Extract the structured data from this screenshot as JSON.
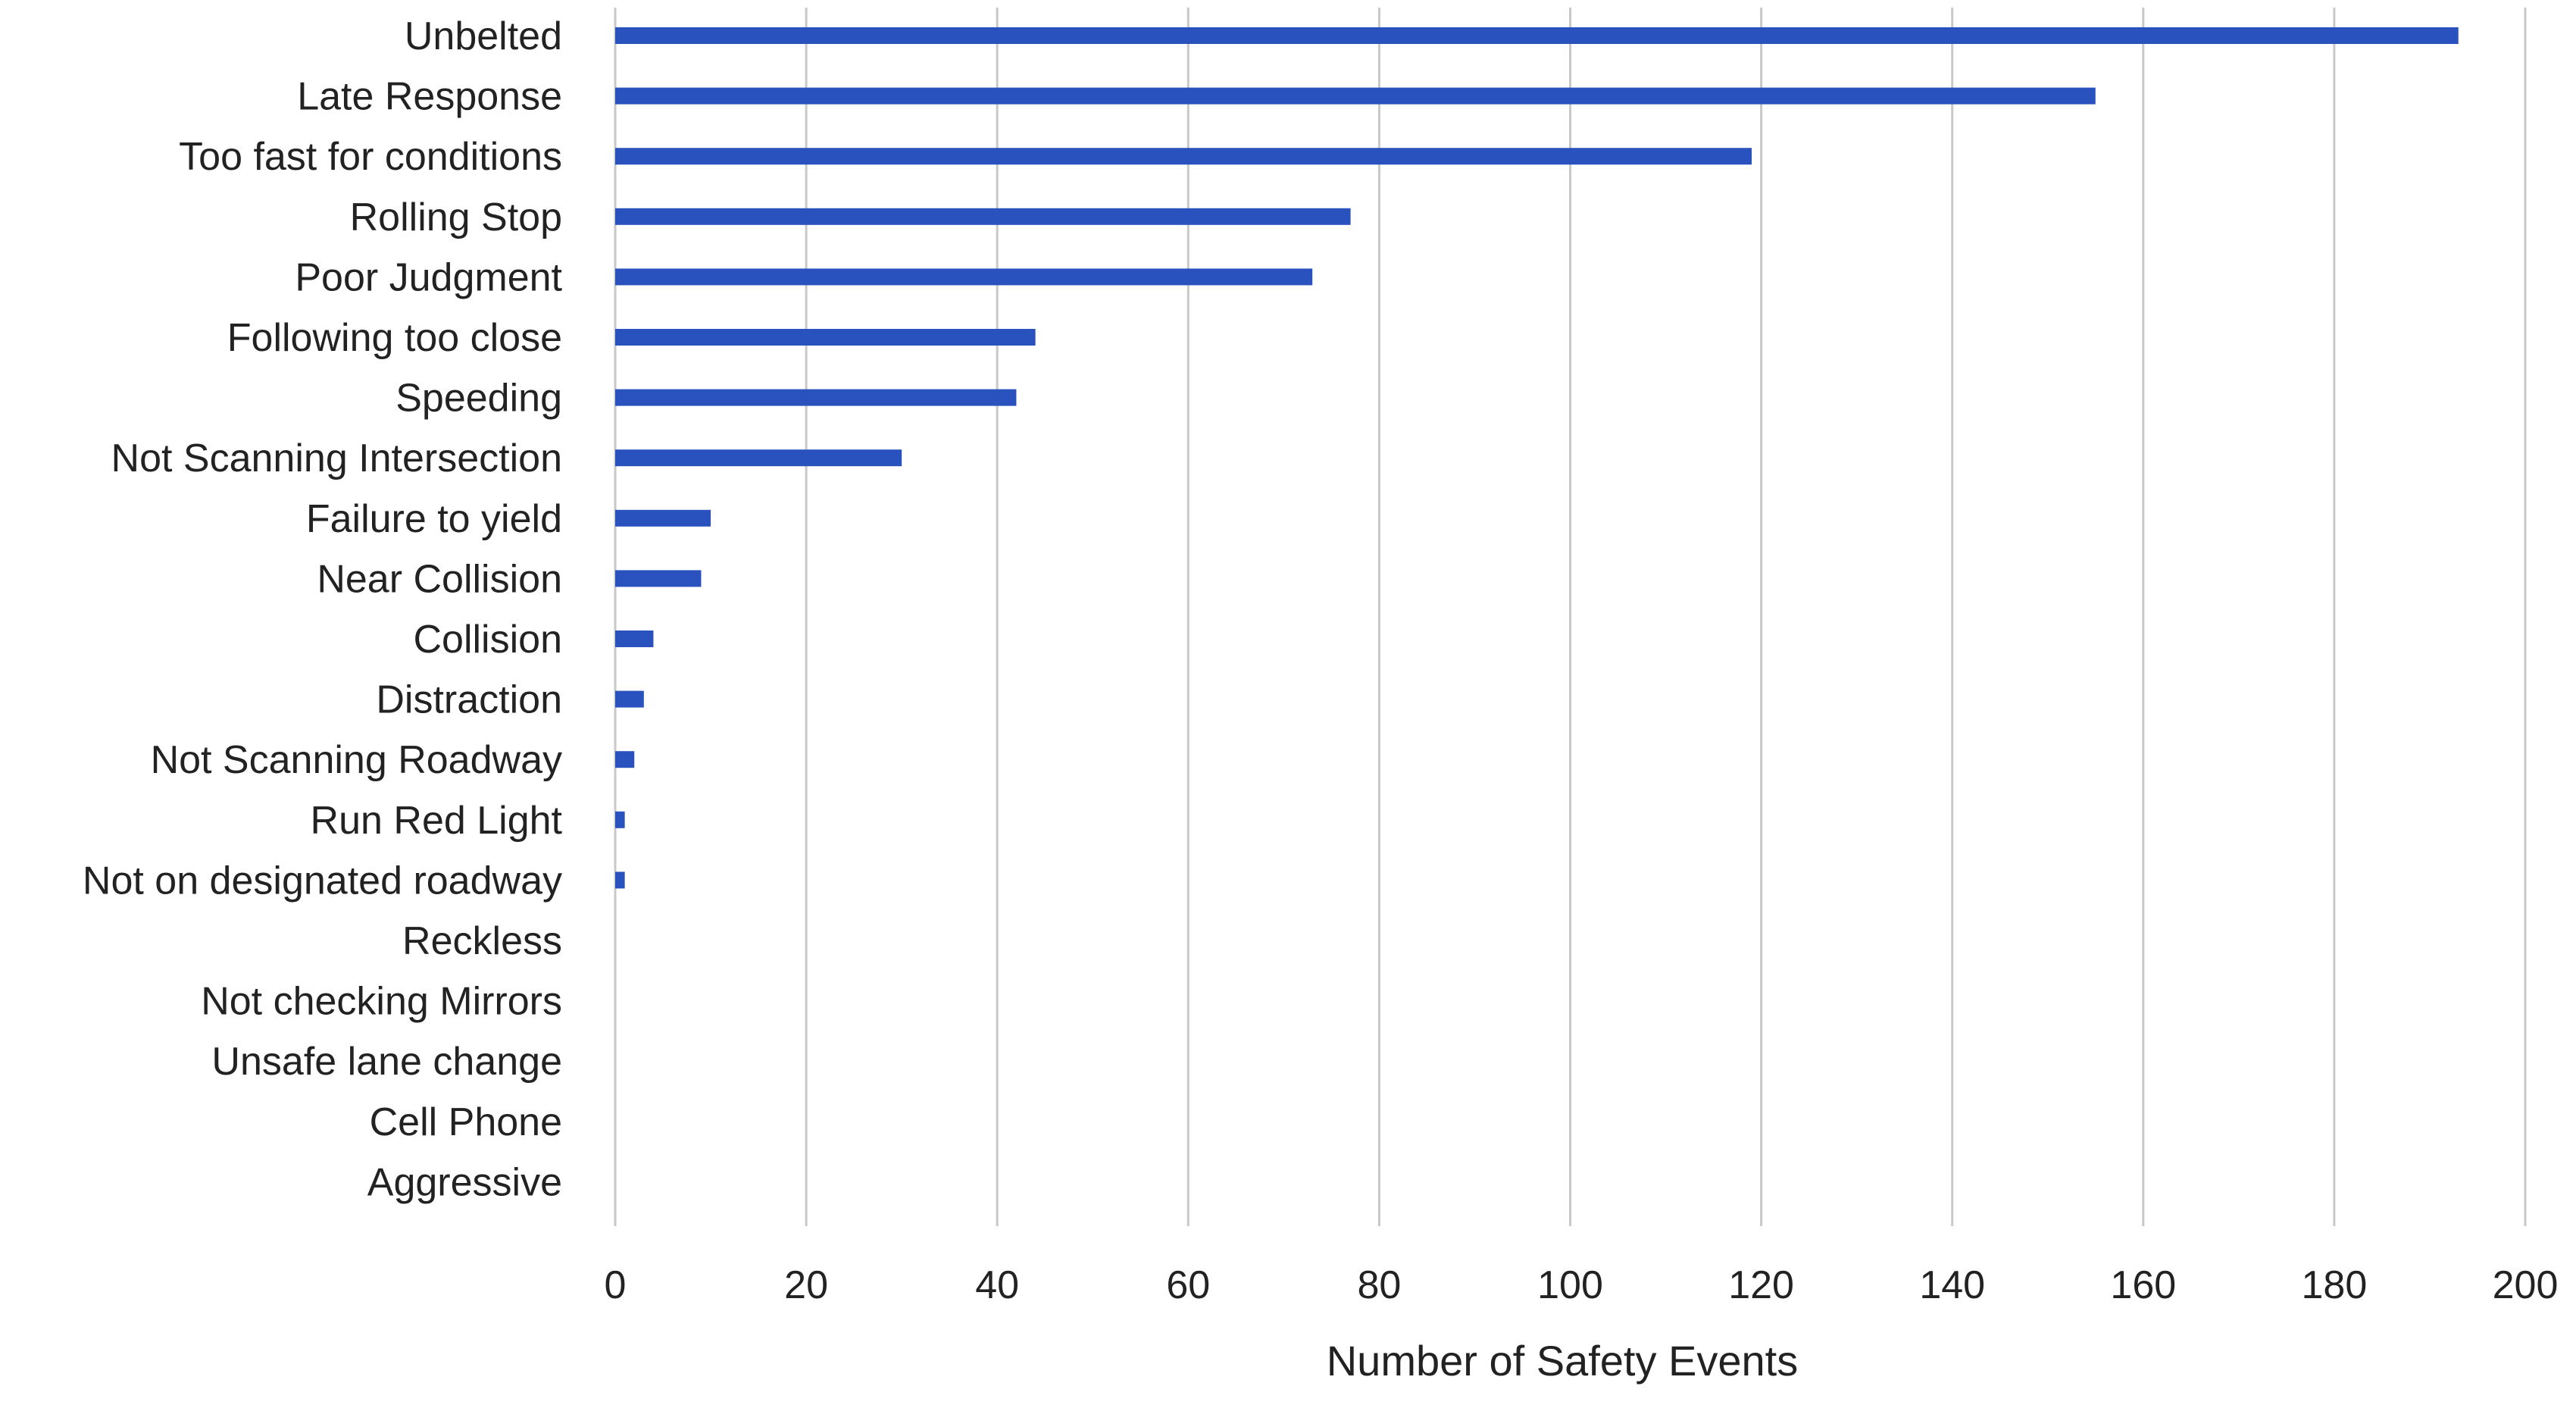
{
  "chart_data": {
    "type": "bar",
    "orientation": "horizontal",
    "categories": [
      "Unbelted",
      "Late Response",
      "Too fast for conditions",
      "Rolling Stop",
      "Poor Judgment",
      "Following too close",
      "Speeding",
      "Not Scanning Intersection",
      "Failure to yield",
      "Near Collision",
      "Collision",
      "Distraction",
      "Not Scanning Roadway",
      "Run Red Light",
      "Not on designated roadway",
      "Reckless",
      "Not checking Mirrors",
      "Unsafe lane change",
      "Cell Phone",
      "Aggressive"
    ],
    "values": [
      193,
      155,
      119,
      77,
      73,
      44,
      42,
      30,
      10,
      9,
      4,
      3,
      2,
      1,
      1,
      0,
      0,
      0,
      0,
      0
    ],
    "xlabel": "Number of Safety Events",
    "ylabel": "",
    "xlim": [
      0,
      200
    ],
    "xticks": [
      0,
      20,
      40,
      60,
      80,
      100,
      120,
      140,
      160,
      180,
      200
    ],
    "grid": "vertical",
    "legend": "none",
    "bar_color": "#2a52be"
  }
}
